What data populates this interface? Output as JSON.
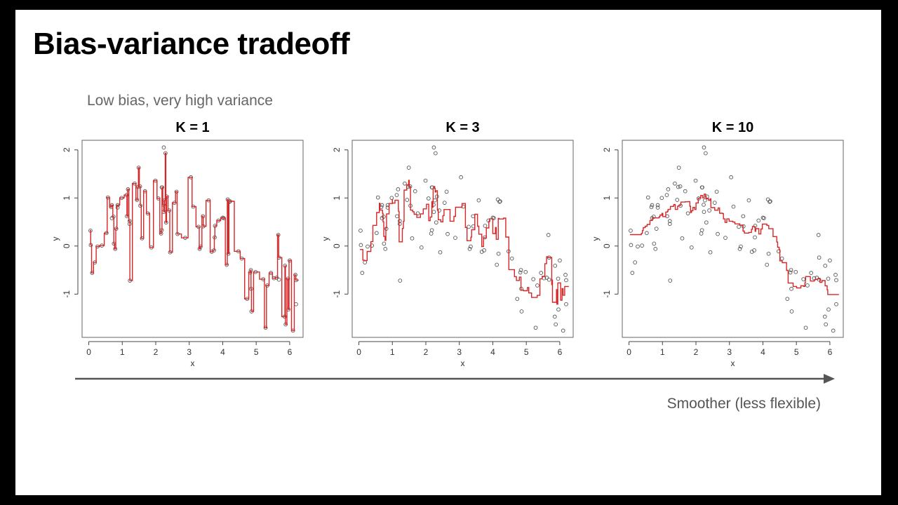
{
  "slide": {
    "title": "Bias-variance tradeoff",
    "subtitle": "Low bias, very high variance",
    "footer": "Smoother (less flexible)",
    "arrow_color": "#555555"
  },
  "chart_data": {
    "type": "scatter",
    "xlabel": "x",
    "ylabel": "y",
    "xlim": [
      -0.2,
      6.4
    ],
    "ylim": [
      -1.9,
      2.2
    ],
    "xticks": [
      0,
      1,
      2,
      3,
      4,
      5,
      6
    ],
    "yticks": [
      -1,
      0,
      1,
      2
    ],
    "grid": false,
    "point_color": "#555555",
    "fit_color": "#d62728",
    "fit_method": "k-nearest-neighbors average",
    "panels": [
      {
        "title": "K = 1",
        "k": 1
      },
      {
        "title": "K = 3",
        "k": 3
      },
      {
        "title": "K = 10",
        "k": 10
      }
    ],
    "points": [
      [
        0.05,
        0.32
      ],
      [
        0.06,
        0.02
      ],
      [
        0.1,
        -0.56
      ],
      [
        0.18,
        -0.34
      ],
      [
        0.26,
        -0.01
      ],
      [
        0.39,
        0.01
      ],
      [
        0.53,
        0.27
      ],
      [
        0.57,
        1.01
      ],
      [
        0.67,
        0.81
      ],
      [
        0.69,
        0.85
      ],
      [
        0.69,
        0.58
      ],
      [
        0.74,
        0.61
      ],
      [
        0.75,
        0.05
      ],
      [
        0.79,
        -0.06
      ],
      [
        0.82,
        0.36
      ],
      [
        0.86,
        0.85
      ],
      [
        0.86,
        0.8
      ],
      [
        0.98,
        1.0
      ],
      [
        1.13,
        1.06
      ],
      [
        1.14,
        0.62
      ],
      [
        1.17,
        1.18
      ],
      [
        1.22,
        0.52
      ],
      [
        1.22,
        0.46
      ],
      [
        1.23,
        -0.72
      ],
      [
        1.37,
        1.3
      ],
      [
        1.44,
        0.96
      ],
      [
        1.47,
        1.23
      ],
      [
        1.49,
        1.63
      ],
      [
        1.53,
        1.24
      ],
      [
        1.54,
        0.84
      ],
      [
        1.59,
        0.16
      ],
      [
        1.68,
        1.14
      ],
      [
        1.76,
        0.68
      ],
      [
        1.87,
        -0.03
      ],
      [
        1.99,
        1.36
      ],
      [
        2.08,
        0.99
      ],
      [
        2.16,
        0.26
      ],
      [
        2.18,
        0.33
      ],
      [
        2.18,
        1.22
      ],
      [
        2.19,
        1.22
      ],
      [
        2.23,
        0.86
      ],
      [
        2.24,
        0.71
      ],
      [
        2.24,
        2.05
      ],
      [
        2.27,
        0.95
      ],
      [
        2.29,
        1.93
      ],
      [
        2.31,
        0.49
      ],
      [
        2.33,
        1.03
      ],
      [
        2.4,
        0.74
      ],
      [
        2.43,
        -0.13
      ],
      [
        2.56,
        0.9
      ],
      [
        2.62,
        1.13
      ],
      [
        2.65,
        0.25
      ],
      [
        2.88,
        0.17
      ],
      [
        3.05,
        1.43
      ],
      [
        3.12,
        0.82
      ],
      [
        3.28,
        0.4
      ],
      [
        3.31,
        -0.06
      ],
      [
        3.34,
        -0.01
      ],
      [
        3.41,
        0.62
      ],
      [
        3.42,
        0.41
      ],
      [
        3.58,
        0.95
      ],
      [
        3.67,
        -0.12
      ],
      [
        3.74,
        -0.09
      ],
      [
        3.76,
        0.18
      ],
      [
        3.77,
        0.42
      ],
      [
        3.87,
        0.53
      ],
      [
        4.0,
        0.59
      ],
      [
        4.03,
        0.58
      ],
      [
        4.12,
        -0.39
      ],
      [
        4.15,
        0.97
      ],
      [
        4.17,
        -0.16
      ],
      [
        4.2,
        0.92
      ],
      [
        4.22,
        0.93
      ],
      [
        4.47,
        -0.11
      ],
      [
        4.57,
        -0.26
      ],
      [
        4.73,
        -1.1
      ],
      [
        4.82,
        -0.55
      ],
      [
        4.84,
        -0.5
      ],
      [
        4.85,
        -0.89
      ],
      [
        4.86,
        -1.36
      ],
      [
        4.98,
        -0.54
      ],
      [
        5.21,
        -0.69
      ],
      [
        5.28,
        -1.7
      ],
      [
        5.33,
        -0.82
      ],
      [
        5.44,
        -0.56
      ],
      [
        5.53,
        -0.67
      ],
      [
        5.61,
        -0.66
      ],
      [
        5.66,
        0.23
      ],
      [
        5.68,
        -0.24
      ],
      [
        5.68,
        -0.7
      ],
      [
        5.85,
        -1.47
      ],
      [
        5.86,
        -0.41
      ],
      [
        5.88,
        -1.63
      ],
      [
        5.95,
        -0.68
      ],
      [
        5.96,
        -1.32
      ],
      [
        6.0,
        -0.3
      ],
      [
        6.1,
        -1.76
      ],
      [
        6.17,
        -0.6
      ],
      [
        6.19,
        -0.71
      ],
      [
        6.19,
        -1.21
      ]
    ]
  }
}
